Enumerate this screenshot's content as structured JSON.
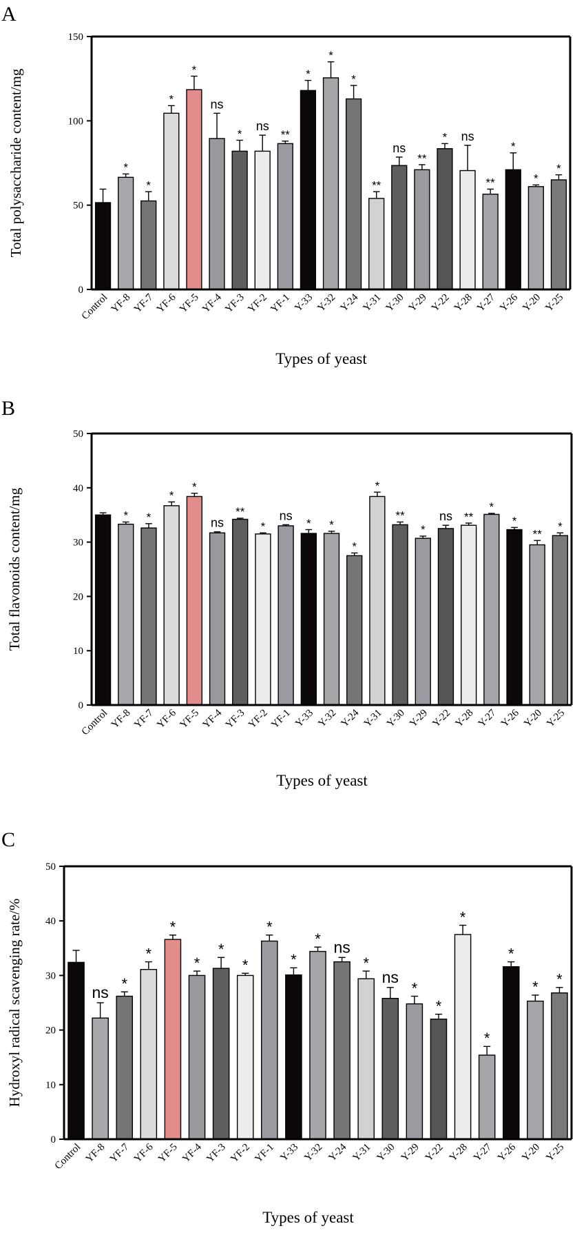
{
  "figure": {
    "categories": [
      "Control",
      "YF-8",
      "YF-7",
      "YF-6",
      "YF-5",
      "YF-4",
      "YF-3",
      "YF-2",
      "YF-1",
      "Y-33",
      "Y-32",
      "Y-24",
      "Y-31",
      "Y-30",
      "Y-29",
      "Y-22",
      "Y-28",
      "Y-27",
      "Y-26",
      "Y-20",
      "Y-25"
    ],
    "bar_colors": [
      "#0d0808",
      "#a9a9ad",
      "#757577",
      "#dcdcdc",
      "#e38c8c",
      "#9a9a9e",
      "#5e5e60",
      "#ececec",
      "#9a9aa0",
      "#0d0808",
      "#a6a6aa",
      "#757578",
      "#d2d2d2",
      "#5e5e60",
      "#9a9aa0",
      "#555557",
      "#ececec",
      "#a6a6aa",
      "#0d0808",
      "#a6a6aa",
      "#7a7a7c"
    ]
  },
  "chart_data": [
    {
      "type": "bar",
      "panel": "A",
      "ylabel": "Total polysaccharide content/mg",
      "xlabel": "Types of yeast",
      "ylim": [
        0,
        150
      ],
      "yticks": [
        0,
        50,
        100,
        150
      ],
      "values": [
        51.5,
        66.5,
        52.5,
        104.5,
        118.5,
        89.5,
        82,
        82,
        86.5,
        118,
        125.5,
        113,
        54,
        73.5,
        71,
        83.5,
        70.5,
        56.5,
        71,
        61,
        65
      ],
      "errors": [
        8,
        2,
        5.5,
        4.5,
        8,
        15,
        6.5,
        9.5,
        1.5,
        6,
        9.5,
        8,
        4,
        5,
        3,
        3,
        15,
        3,
        10,
        1,
        3
      ],
      "significance": [
        "",
        "*",
        "*",
        "*",
        "*",
        "ns",
        "*",
        "ns",
        "**",
        "*",
        "*",
        "*",
        "**",
        "ns",
        "**",
        "*",
        "ns",
        "**",
        "*",
        "*",
        "*"
      ]
    },
    {
      "type": "bar",
      "panel": "B",
      "ylabel": "Total flavonoids content/mg",
      "xlabel": "Types of yeast",
      "ylim": [
        0,
        50
      ],
      "yticks": [
        0,
        10,
        20,
        30,
        40,
        50
      ],
      "values": [
        35,
        33.3,
        32.6,
        36.7,
        38.4,
        31.7,
        34.2,
        31.5,
        33,
        31.6,
        31.6,
        27.5,
        38.4,
        33.2,
        30.7,
        32.5,
        33.1,
        35.1,
        32.3,
        29.5,
        31.2
      ],
      "errors": [
        0.4,
        0.4,
        0.8,
        0.7,
        0.6,
        0.2,
        0.2,
        0.2,
        0.2,
        0.7,
        0.4,
        0.5,
        0.8,
        0.5,
        0.4,
        0.6,
        0.4,
        0.2,
        0.4,
        0.8,
        0.5
      ],
      "significance": [
        "",
        "*",
        "*",
        "*",
        "*",
        "ns",
        "**",
        "*",
        "ns",
        "*",
        "*",
        "*",
        "*",
        "**",
        "*",
        "ns",
        "**",
        "*",
        "*",
        "**",
        "*"
      ]
    },
    {
      "type": "bar",
      "panel": "C",
      "ylabel": "Hydroxyl radical scavenging rate/%",
      "xlabel": "Types of yeast",
      "ylim": [
        0,
        50
      ],
      "yticks": [
        0,
        10,
        20,
        30,
        40,
        50
      ],
      "values": [
        32.4,
        22.2,
        26.2,
        31.1,
        36.6,
        30,
        31.3,
        30,
        36.3,
        30.1,
        34.4,
        32.5,
        29.4,
        25.8,
        24.8,
        22,
        37.5,
        15.4,
        31.6,
        25.3,
        26.8
      ],
      "errors": [
        2.2,
        2.8,
        0.8,
        1.4,
        0.8,
        0.8,
        2,
        0.4,
        1.1,
        1.3,
        0.8,
        0.8,
        1.4,
        2,
        1.4,
        0.9,
        1.7,
        1.6,
        0.9,
        1.1,
        1
      ],
      "significance": [
        "",
        "ns",
        "*",
        "*",
        "*",
        "*",
        "*",
        "*",
        "*",
        "*",
        "*",
        "ns",
        "*",
        "ns",
        "*",
        "*",
        "*",
        "*",
        "*",
        "*",
        "*"
      ]
    }
  ]
}
